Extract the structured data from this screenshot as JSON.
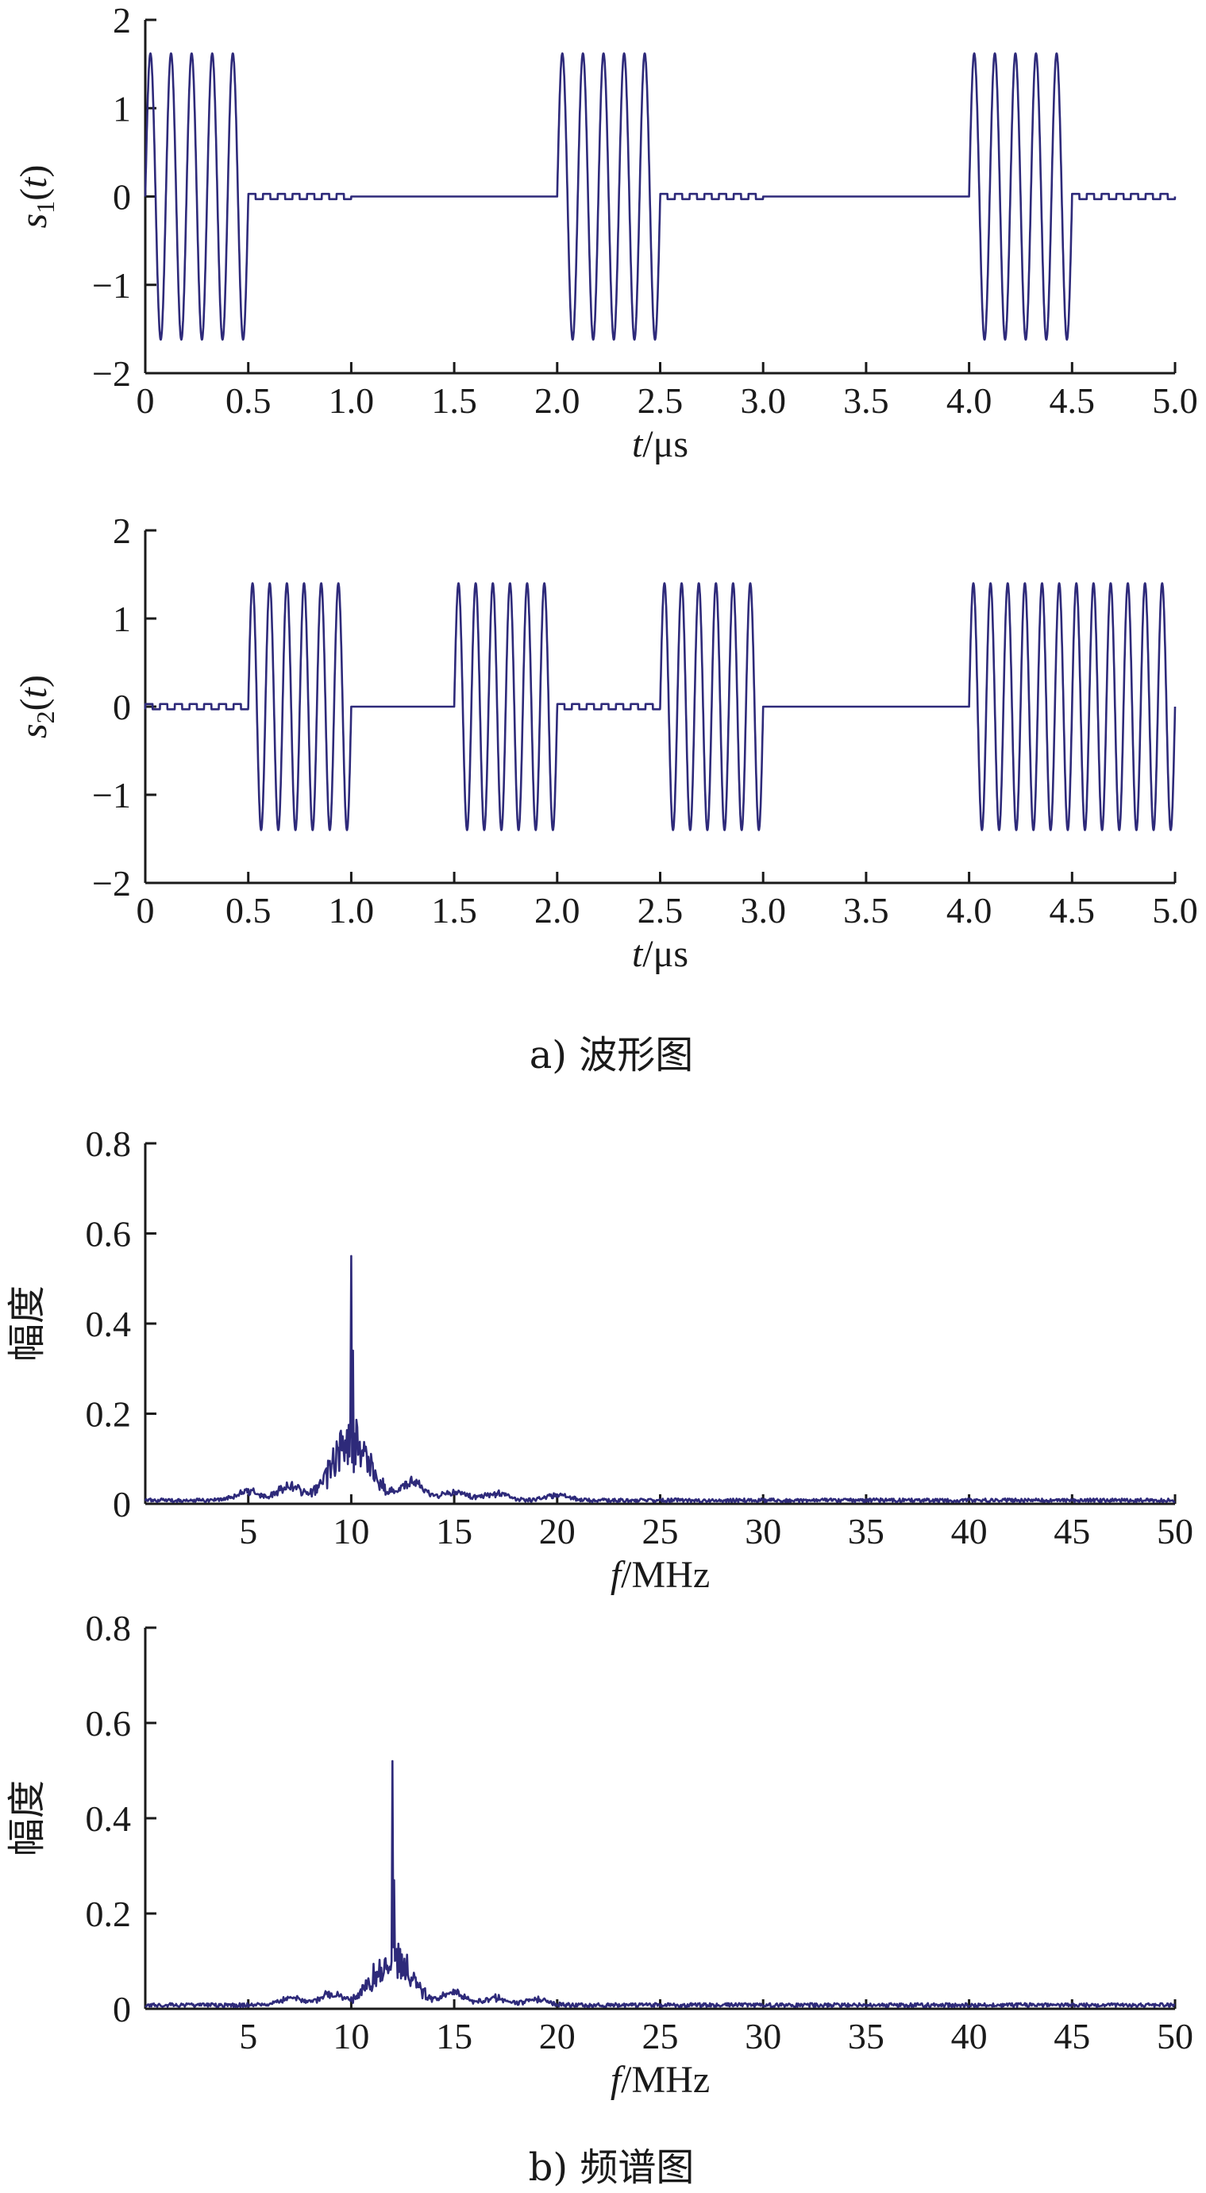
{
  "captions": {
    "a": "a) 波形图",
    "b": "b) 频谱图"
  },
  "colors": {
    "signal": "#2e2a7a",
    "axis": "#1a1a1a"
  },
  "chart_data": [
    {
      "id": "s1",
      "type": "line",
      "ylabel_base": "s",
      "ylabel_sub": "1",
      "ylabel_arg": "t",
      "xlabel_var": "t",
      "xlabel_unit": "/μs",
      "xlim": [
        0,
        5
      ],
      "ylim": [
        -2,
        2
      ],
      "xticks": [
        "0",
        "0.5",
        "1.0",
        "1.5",
        "2.0",
        "2.5",
        "3.0",
        "3.5",
        "4.0",
        "4.5",
        "5.0"
      ],
      "yticks": [
        "2",
        "1",
        "0",
        "−1",
        "−2"
      ],
      "series": [
        {
          "amplitude": 1.62,
          "cycles_per_us": 10,
          "bursts_us": [
            [
              0,
              0.5
            ],
            [
              2.0,
              2.5
            ],
            [
              4.0,
              4.5
            ]
          ],
          "residual_amplitude": 0.03,
          "residual_segments_us": [
            [
              0.5,
              1.0
            ],
            [
              2.5,
              3.0
            ],
            [
              4.5,
              5.0
            ]
          ]
        }
      ]
    },
    {
      "id": "s2",
      "type": "line",
      "ylabel_base": "s",
      "ylabel_sub": "2",
      "ylabel_arg": "t",
      "xlabel_var": "t",
      "xlabel_unit": "/μs",
      "xlim": [
        0,
        5
      ],
      "ylim": [
        -2,
        2
      ],
      "xticks": [
        "0",
        "0.5",
        "1.0",
        "1.5",
        "2.0",
        "2.5",
        "3.0",
        "3.5",
        "4.0",
        "4.5",
        "5.0"
      ],
      "yticks": [
        "2",
        "1",
        "0",
        "−1",
        "−2"
      ],
      "series": [
        {
          "amplitude": 1.4,
          "cycles_per_us": 12,
          "bursts_us": [
            [
              0.5,
              1.0
            ],
            [
              1.5,
              2.0
            ],
            [
              2.5,
              3.0
            ],
            [
              4.0,
              5.0
            ]
          ],
          "residual_amplitude": 0.03,
          "residual_segments_us": [
            [
              0,
              0.5
            ],
            [
              2.0,
              2.5
            ]
          ]
        }
      ]
    },
    {
      "id": "spec1",
      "type": "line",
      "ylabel": "幅度",
      "xlabel_var": "f",
      "xlabel_unit": "/MHz",
      "xlim": [
        0,
        50
      ],
      "ylim": [
        0,
        0.8
      ],
      "xticks": [
        "5",
        "10",
        "15",
        "20",
        "25",
        "30",
        "35",
        "40",
        "45",
        "50"
      ],
      "yticks": [
        "0.8",
        "0.6",
        "0.4",
        "0.2",
        "0"
      ],
      "series": [
        {
          "peak_freq_mhz": 10,
          "peak_value": 0.55,
          "secondary_peak": 0.34,
          "main_lobe_level": 0.19,
          "sidelobes": [
            [
              7,
              0.04
            ],
            [
              13,
              0.05
            ],
            [
              5,
              0.025
            ],
            [
              15,
              0.025
            ],
            [
              17,
              0.02
            ],
            [
              20,
              0.015
            ]
          ],
          "noise_floor": 0.012
        }
      ]
    },
    {
      "id": "spec2",
      "type": "line",
      "ylabel": "幅度",
      "xlabel_var": "f",
      "xlabel_unit": "/MHz",
      "xlim": [
        0,
        50
      ],
      "ylim": [
        0,
        0.8
      ],
      "xticks": [
        "5",
        "10",
        "15",
        "20",
        "25",
        "30",
        "35",
        "40",
        "45",
        "50"
      ],
      "yticks": [
        "0.8",
        "0.6",
        "0.4",
        "0.2",
        "0"
      ],
      "series": [
        {
          "peak_freq_mhz": 12,
          "peak_value": 0.52,
          "secondary_peak": 0.27,
          "main_lobe_level": 0.15,
          "sidelobes": [
            [
              9,
              0.03
            ],
            [
              15,
              0.035
            ],
            [
              7,
              0.02
            ],
            [
              17,
              0.02
            ],
            [
              19,
              0.015
            ]
          ],
          "noise_floor": 0.012
        }
      ]
    }
  ]
}
